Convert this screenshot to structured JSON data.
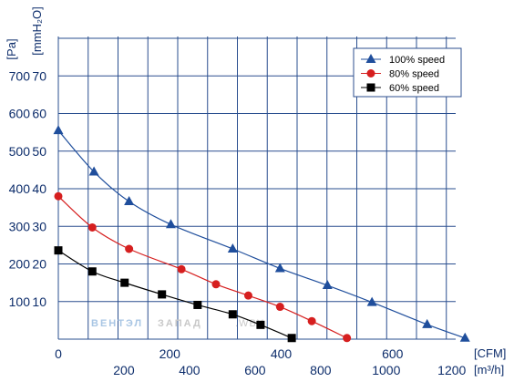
{
  "chart_data": {
    "type": "line",
    "x_units": "CFM",
    "x_unit_labels": {
      "primary": "[CFM]",
      "secondary": "[m³/h]"
    },
    "y_unit_labels": {
      "primary": "[Pa]",
      "secondary": "[mmH₂O]"
    },
    "x_cfm_ticks": [
      0,
      200,
      400,
      600
    ],
    "x_m3h_ticks": [
      200,
      400,
      600,
      800,
      1000,
      1200
    ],
    "m3h_per_cfm": 1.699,
    "y_pa_ticks": [
      100,
      200,
      300,
      400,
      500,
      600,
      700
    ],
    "y_mmh2o_ticks": [
      10,
      20,
      30,
      40,
      50,
      60,
      70
    ],
    "xlim": [
      0,
      700
    ],
    "ylim": [
      0,
      800
    ],
    "grid": true,
    "legend_position": "top-right",
    "series": [
      {
        "name": "100%  speed",
        "color": "#1f4e9c",
        "marker": "triangle",
        "points": [
          [
            0,
            555
          ],
          [
            64,
            445
          ],
          [
            127,
            366
          ],
          [
            202,
            305
          ],
          [
            313,
            240
          ],
          [
            398,
            188
          ],
          [
            483,
            143
          ],
          [
            563,
            98
          ],
          [
            662,
            39
          ],
          [
            730,
            3
          ]
        ]
      },
      {
        "name": "80%  speed",
        "color": "#d61f1f",
        "marker": "circle",
        "points": [
          [
            0,
            380
          ],
          [
            61,
            297
          ],
          [
            127,
            240
          ],
          [
            221,
            186
          ],
          [
            283,
            146
          ],
          [
            341,
            116
          ],
          [
            398,
            86
          ],
          [
            455,
            48
          ],
          [
            518,
            3
          ]
        ]
      },
      {
        "name": "60%  speed",
        "color": "#000000",
        "marker": "square",
        "points": [
          [
            0,
            236
          ],
          [
            61,
            180
          ],
          [
            119,
            150
          ],
          [
            186,
            119
          ],
          [
            250,
            91
          ],
          [
            313,
            66
          ],
          [
            363,
            38
          ],
          [
            419,
            3
          ]
        ]
      }
    ]
  },
  "watermark": {
    "part1": "ВЕНТЭЛ",
    "part2": "ЗАПАД",
    "part3": ".WBY"
  }
}
